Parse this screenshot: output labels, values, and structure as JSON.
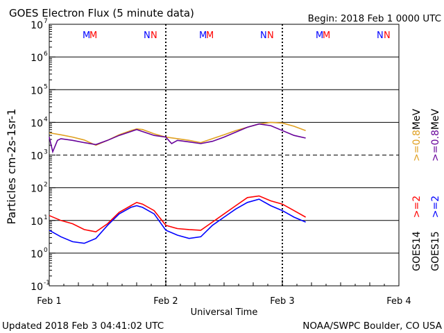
{
  "chart_data": {
    "type": "line",
    "title": "GOES Electron Flux (5 minute data)",
    "begin_label": "Begin: 2018 Feb 1 0000 UTC",
    "xlabel": "Universal Time",
    "ylabel": "Particles cm-2s-1sr-1",
    "yscale": "log",
    "ylim_exponents": [
      -1,
      7
    ],
    "y_ticks": [
      {
        "base": "10",
        "exp": "7"
      },
      {
        "base": "10",
        "exp": "6"
      },
      {
        "base": "10",
        "exp": "5"
      },
      {
        "base": "10",
        "exp": "4"
      },
      {
        "base": "10",
        "exp": "3"
      },
      {
        "base": "10",
        "exp": "2"
      },
      {
        "base": "10",
        "exp": "1"
      },
      {
        "base": "10",
        "exp": "0"
      },
      {
        "base": "10",
        "exp": "-1"
      }
    ],
    "x_days": 3,
    "x_ticks": [
      "Feb 1",
      "Feb 2",
      "Feb 3",
      "Feb 4"
    ],
    "threshold_exponent": 3,
    "series": [
      {
        "name": "GOES14 >=0.8 MeV",
        "color": "#e0a020",
        "t": [
          0.0,
          0.1,
          0.2,
          0.3,
          0.4,
          0.5,
          0.6,
          0.7,
          0.75,
          0.8,
          0.9,
          1.0,
          1.1,
          1.2,
          1.3,
          1.4,
          1.5,
          1.6,
          1.7,
          1.8,
          1.9,
          2.0,
          2.1,
          2.2
        ],
        "log": [
          3.68,
          3.62,
          3.55,
          3.46,
          3.3,
          3.45,
          3.62,
          3.75,
          3.8,
          3.78,
          3.65,
          3.55,
          3.5,
          3.45,
          3.38,
          3.5,
          3.62,
          3.75,
          3.85,
          3.95,
          4.0,
          3.98,
          3.88,
          3.75
        ]
      },
      {
        "name": "GOES15 >=0.8 MeV",
        "color": "#660099",
        "t": [
          0.0,
          0.03,
          0.07,
          0.1,
          0.2,
          0.3,
          0.4,
          0.5,
          0.6,
          0.7,
          0.75,
          0.8,
          0.9,
          1.0,
          1.05,
          1.1,
          1.2,
          1.3,
          1.4,
          1.5,
          1.6,
          1.7,
          1.8,
          1.9,
          2.0,
          2.1,
          2.2
        ],
        "log": [
          3.55,
          3.1,
          3.45,
          3.5,
          3.45,
          3.38,
          3.32,
          3.45,
          3.6,
          3.72,
          3.78,
          3.72,
          3.6,
          3.55,
          3.35,
          3.45,
          3.4,
          3.35,
          3.42,
          3.55,
          3.7,
          3.85,
          3.95,
          3.9,
          3.75,
          3.6,
          3.52
        ]
      },
      {
        "name": "GOES14 >=2 MeV",
        "color": "#ff0000",
        "t": [
          0.0,
          0.1,
          0.2,
          0.3,
          0.4,
          0.5,
          0.6,
          0.7,
          0.75,
          0.8,
          0.9,
          1.0,
          1.1,
          1.2,
          1.3,
          1.4,
          1.5,
          1.6,
          1.7,
          1.8,
          1.9,
          2.0,
          2.1,
          2.2
        ],
        "log": [
          1.15,
          1.0,
          0.9,
          0.72,
          0.65,
          0.9,
          1.25,
          1.45,
          1.55,
          1.5,
          1.3,
          0.85,
          0.75,
          0.72,
          0.7,
          0.95,
          1.2,
          1.45,
          1.7,
          1.75,
          1.6,
          1.5,
          1.3,
          1.1
        ]
      },
      {
        "name": "GOES15 >=2 MeV",
        "color": "#0000ff",
        "t": [
          0.0,
          0.1,
          0.2,
          0.3,
          0.4,
          0.5,
          0.6,
          0.7,
          0.75,
          0.8,
          0.9,
          1.0,
          1.1,
          1.2,
          1.3,
          1.4,
          1.5,
          1.6,
          1.7,
          1.8,
          1.9,
          2.0,
          2.1,
          2.2
        ],
        "log": [
          0.7,
          0.5,
          0.35,
          0.3,
          0.45,
          0.85,
          1.2,
          1.4,
          1.45,
          1.4,
          1.2,
          0.7,
          0.55,
          0.45,
          0.5,
          0.85,
          1.1,
          1.35,
          1.55,
          1.65,
          1.45,
          1.3,
          1.1,
          0.95
        ]
      }
    ],
    "markers_top": [
      {
        "label": "M",
        "color": "#0000ff"
      },
      {
        "label": "M",
        "color": "#ff0000"
      },
      {
        "label": "N",
        "color": "#0000ff"
      },
      {
        "label": "N",
        "color": "#ff0000"
      }
    ],
    "legend": {
      "g14": "GOES14",
      "g15": "GOES15",
      "g14_high": ">=2",
      "g15_high": ">=2",
      "g14_low": ">=0.8",
      "g15_low": ">=0.8",
      "unit": "MeV"
    }
  },
  "footer": {
    "updated": "Updated 2018 Feb  3 04:41:02 UTC",
    "source": "NOAA/SWPC Boulder, CO USA"
  }
}
